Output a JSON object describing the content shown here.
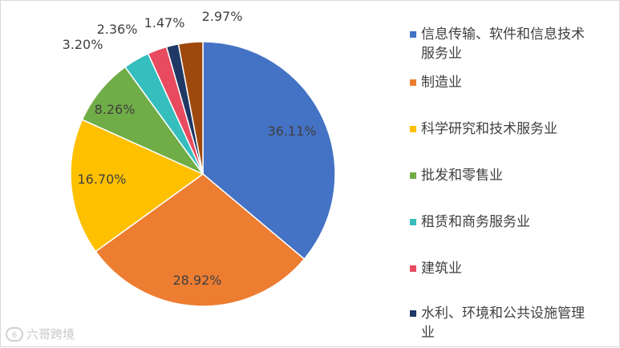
{
  "chart_data": {
    "type": "pie",
    "title": "",
    "categories": [
      "信息传输、软件和信息技术服务业",
      "制造业",
      "科学研究和技术服务业",
      "批发和零售业",
      "租赁和商务服务业",
      "建筑业",
      "水利、环境和公共设施管理业",
      ""
    ],
    "values": [
      36.11,
      28.92,
      16.7,
      8.26,
      3.2,
      2.36,
      1.47,
      2.97
    ],
    "value_labels": [
      "36.11%",
      "28.92%",
      "16.70%",
      "8.26%",
      "3.20%",
      "2.36%",
      "1.47%",
      "2.97%"
    ],
    "colors": [
      "#4472c4",
      "#ed7d31",
      "#ffc000",
      "#70ad47",
      "#36bdbd",
      "#e84a5f",
      "#1f3864",
      "#9e480e"
    ],
    "legend_position": "right"
  },
  "legend": {
    "items": [
      {
        "label_lines": [
          "信息传输、软件和信息技术",
          "服务业"
        ],
        "color": "#4472c4"
      },
      {
        "label_lines": [
          "制造业"
        ],
        "color": "#ed7d31"
      },
      {
        "label_lines": [
          "科学研究和技术服务业"
        ],
        "color": "#ffc000"
      },
      {
        "label_lines": [
          "批发和零售业"
        ],
        "color": "#70ad47"
      },
      {
        "label_lines": [
          "租赁和商务服务业"
        ],
        "color": "#36bdbd"
      },
      {
        "label_lines": [
          "建筑业"
        ],
        "color": "#e84a5f"
      },
      {
        "label_lines": [
          "水利、环境和公共设施管理",
          "业"
        ],
        "color": "#1f3864"
      }
    ]
  },
  "watermark": {
    "text": "六哥跨境",
    "logo_icon": "watermark-logo-icon",
    "logo_text": "6"
  }
}
